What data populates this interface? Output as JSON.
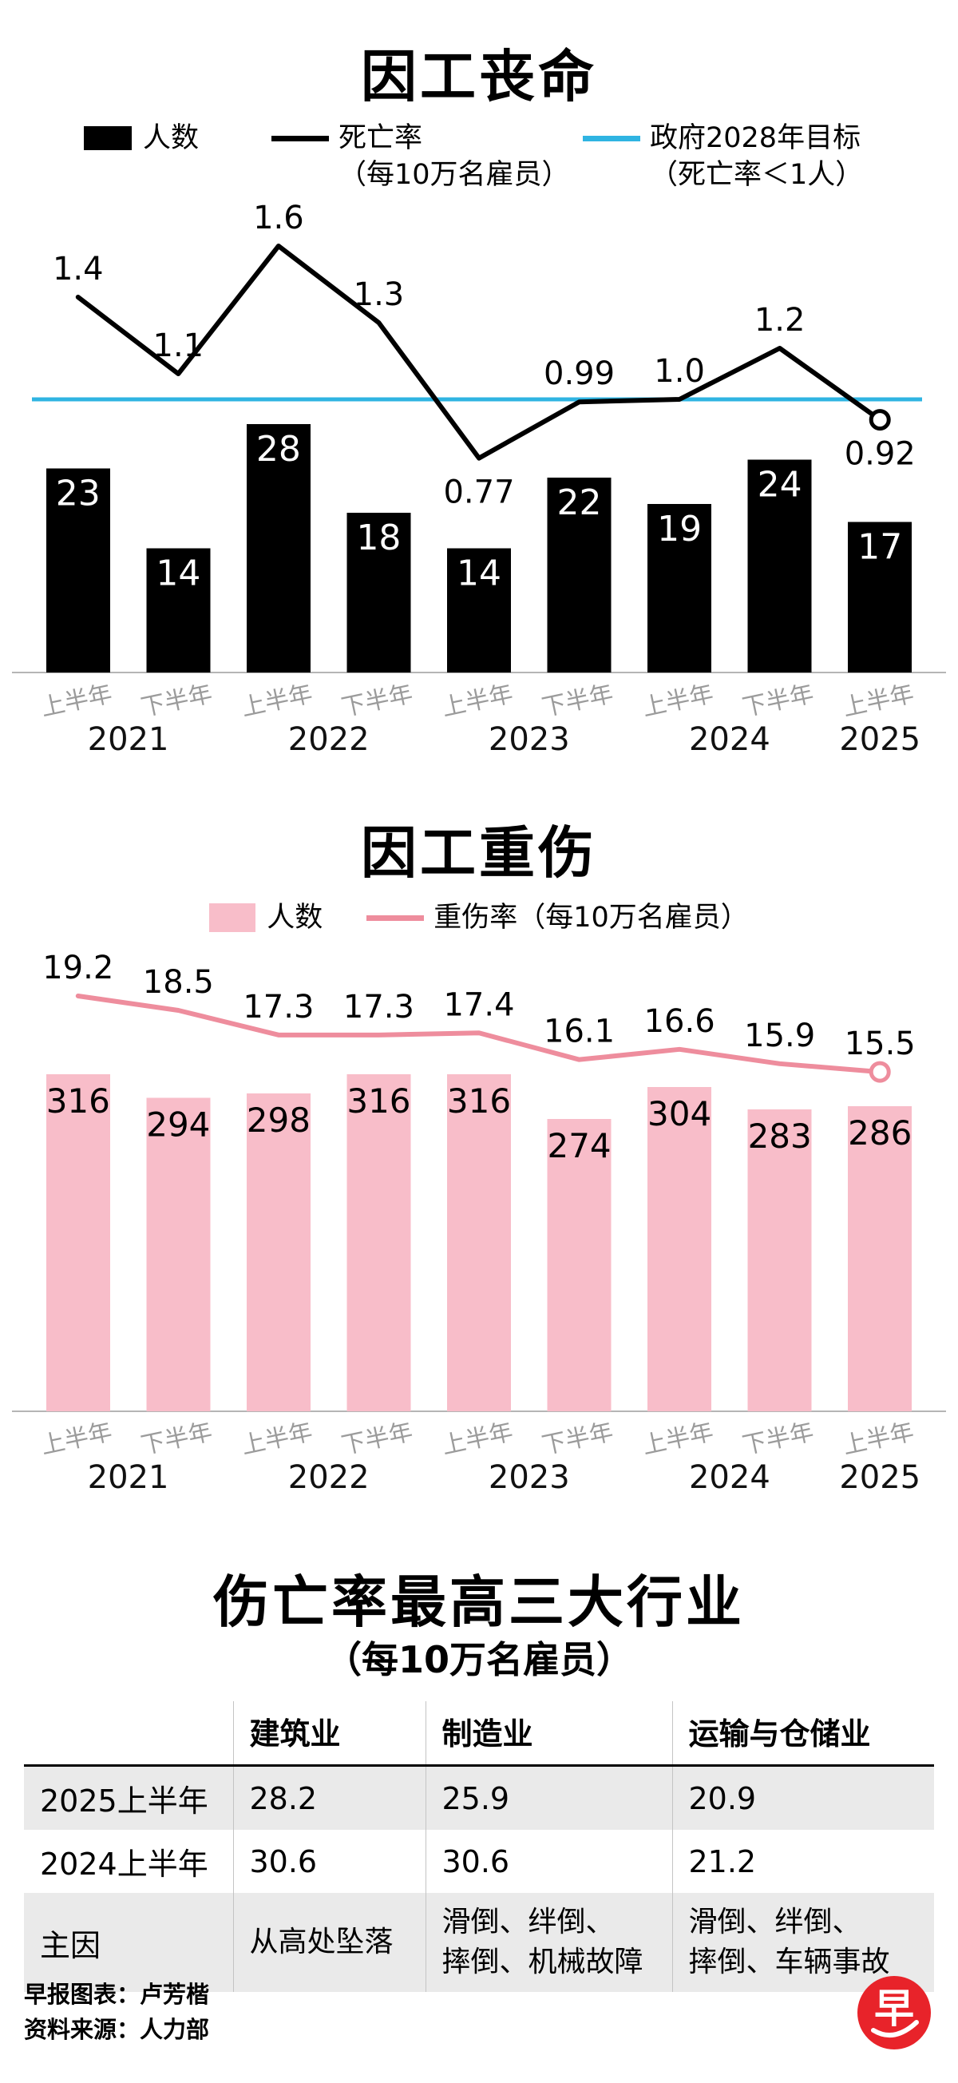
{
  "fatalities": {
    "title": "因工丧命",
    "legend": {
      "bars": "人数",
      "rate": [
        "死亡率",
        "（每10万名雇员）"
      ],
      "target": [
        "政府2028年目标",
        "（死亡率＜1人）"
      ]
    },
    "colors": {
      "bar": "#000000",
      "line": "#000000",
      "target": "#2fb4e2"
    }
  },
  "injuries": {
    "title": "因工重伤",
    "legend": {
      "bars": "人数",
      "rate": "重伤率（每10万名雇员）"
    },
    "colors": {
      "bar": "#f8bdc9",
      "line": "#ee8d9d"
    }
  },
  "chart_data": [
    {
      "type": "bar+line",
      "title": "因工丧命",
      "categories": [
        "上半年",
        "下半年",
        "上半年",
        "下半年",
        "上半年",
        "下半年",
        "上半年",
        "下半年",
        "上半年"
      ],
      "years": [
        {
          "label": "2021",
          "slots": [
            0,
            1
          ]
        },
        {
          "label": "2022",
          "slots": [
            2,
            3
          ]
        },
        {
          "label": "2023",
          "slots": [
            4,
            5
          ]
        },
        {
          "label": "2024",
          "slots": [
            6,
            7
          ]
        },
        {
          "label": "2025",
          "slots": [
            8
          ]
        }
      ],
      "series": [
        {
          "name": "人数",
          "type": "bar",
          "values": [
            23,
            14,
            28,
            18,
            14,
            22,
            19,
            24,
            17
          ],
          "labels": [
            "23",
            "14",
            "28",
            "18",
            "14",
            "22",
            "19",
            "24",
            "17"
          ]
        },
        {
          "name": "死亡率（每10万名雇员）",
          "type": "line",
          "values": [
            1.4,
            1.1,
            1.6,
            1.3,
            0.77,
            0.99,
            1.0,
            1.2,
            0.92
          ],
          "labels": [
            "1.4",
            "1.1",
            "1.6",
            "1.3",
            "0.77",
            "0.99",
            "1.0",
            "1.2",
            "0.92"
          ]
        },
        {
          "name": "政府2028年目标（死亡率＜1人）",
          "type": "target",
          "value": 1.0
        }
      ],
      "label_positions": [
        "above",
        "above",
        "above",
        "above",
        "below",
        "above",
        "above",
        "above",
        "below"
      ],
      "ylim_bars": [
        0,
        50
      ],
      "ylim_line": [
        0,
        1.8
      ],
      "grid": false,
      "legend_position": "top"
    },
    {
      "type": "bar+line",
      "title": "因工重伤",
      "categories": [
        "上半年",
        "下半年",
        "上半年",
        "下半年",
        "上半年",
        "下半年",
        "上半年",
        "下半年",
        "上半年"
      ],
      "years": [
        {
          "label": "2021",
          "slots": [
            0,
            1
          ]
        },
        {
          "label": "2022",
          "slots": [
            2,
            3
          ]
        },
        {
          "label": "2023",
          "slots": [
            4,
            5
          ]
        },
        {
          "label": "2024",
          "slots": [
            6,
            7
          ]
        },
        {
          "label": "2025",
          "slots": [
            8
          ]
        }
      ],
      "series": [
        {
          "name": "人数",
          "type": "bar",
          "values": [
            316,
            294,
            298,
            316,
            316,
            274,
            304,
            283,
            286
          ],
          "labels": [
            "316",
            "294",
            "298",
            "316",
            "316",
            "274",
            "304",
            "283",
            "286"
          ]
        },
        {
          "name": "重伤率（每10万名雇员）",
          "type": "line",
          "values": [
            19.2,
            18.5,
            17.3,
            17.3,
            17.4,
            16.1,
            16.6,
            15.9,
            15.5
          ],
          "labels": [
            "19.2",
            "18.5",
            "17.3",
            "17.3",
            "17.4",
            "16.1",
            "16.6",
            "15.9",
            "15.5"
          ]
        }
      ],
      "label_positions": [
        "above",
        "above",
        "above",
        "above",
        "above",
        "above",
        "above",
        "above",
        "above"
      ],
      "ylim_bars": [
        0,
        450
      ],
      "ylim_line": [
        0,
        22
      ],
      "grid": false,
      "legend_position": "top"
    }
  ],
  "industries": {
    "title": "伤亡率最高三大行业",
    "subtitle": "（每10万名雇员）",
    "columns": [
      "建筑业",
      "制造业",
      "运输与仓储业"
    ],
    "rows": [
      {
        "label": "2025上半年",
        "values": [
          "28.2",
          "25.9",
          "20.9"
        ]
      },
      {
        "label": "2024上半年",
        "values": [
          "30.6",
          "30.6",
          "21.2"
        ]
      },
      {
        "label": "主因",
        "values": [
          "从高处坠落",
          "滑倒、绊倒、\n摔倒、机械故障",
          "滑倒、绊倒、\n摔倒、车辆事故"
        ]
      }
    ]
  },
  "footer": {
    "credit": "早报图表：卢芳楷",
    "source": "资料来源：人力部",
    "logo_char": "早",
    "logo_color": "#e8232a"
  }
}
